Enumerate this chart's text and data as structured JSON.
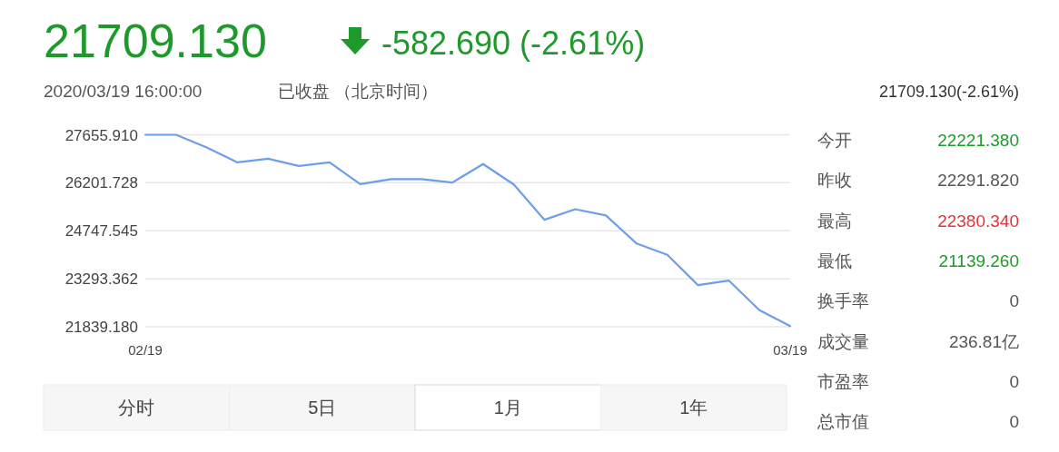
{
  "chart_data": [
    {
      "type": "line",
      "title": "21709.130",
      "subtitle": "-582.690 (-2.61%)",
      "annotations": [
        "2020/03/19 16:00:00",
        "已收盘 （北京时间）",
        "21709.130(-2.61%)",
        "分时",
        "5日",
        "1月",
        "1年"
      ],
      "categories": [
        "02/19",
        null,
        null,
        null,
        null,
        null,
        null,
        null,
        null,
        null,
        null,
        null,
        null,
        null,
        null,
        null,
        null,
        null,
        null,
        null,
        null,
        "03/19"
      ],
      "series": [
        {
          "color": "#6d9eeb",
          "values": [
            27655.91,
            27655.91,
            27270,
            26820,
            26930,
            26710,
            26820,
            26160,
            26310,
            26310,
            26210,
            26770,
            26150,
            25080,
            25400,
            25210,
            24360,
            24020,
            23100,
            23240,
            22340,
            21860
          ]
        }
      ],
      "ylim": [
        21839.18,
        27655.91
      ],
      "yticks": [
        {
          "value": 21839.18,
          "label": "21839.180"
        },
        {
          "value": 23293.362,
          "label": "23293.362"
        },
        {
          "value": 24747.545,
          "label": "24747.545"
        },
        {
          "value": 26201.728,
          "label": "26201.728"
        },
        {
          "value": 27655.91,
          "label": "27655.910"
        }
      ],
      "grid": "y"
    },
    {
      "type": "other",
      "annotations": [
        "今开",
        "22221.380",
        "昨收",
        "22291.820",
        "最高",
        "22380.340",
        "最低",
        "21139.260",
        "换手率",
        "0",
        "成交量",
        "236.81亿",
        "市盈率",
        "0",
        "总市值",
        "0"
      ]
    }
  ]
}
